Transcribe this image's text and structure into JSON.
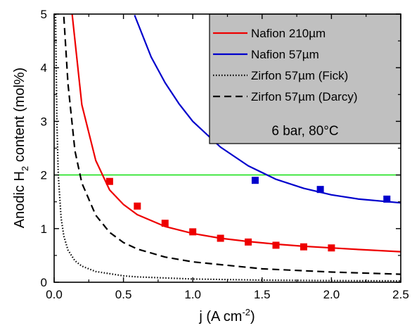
{
  "chart_data": {
    "type": "line",
    "title": "",
    "xlabel": {
      "main": "j (A cm",
      "sup": "-2",
      "close": ")"
    },
    "ylabel": {
      "pre": "Anodic H",
      "sub": "2",
      "post": " content (mol%)"
    },
    "xlim": [
      0.0,
      2.5
    ],
    "ylim": [
      0,
      5
    ],
    "xticks": [
      "0.0",
      "0.5",
      "1.0",
      "1.5",
      "2.0",
      "2.5"
    ],
    "yticks": [
      "0",
      "1",
      "2",
      "3",
      "4",
      "5"
    ],
    "grid": false,
    "legend_placement": "top-right",
    "annotation": "6 bar, 80°C",
    "threshold": {
      "y": 2.0,
      "color": "#00dd00"
    },
    "series": [
      {
        "name": "Nafion 210µm",
        "color": "#ee0000",
        "style": "solid",
        "x": [
          0.13,
          0.2,
          0.3,
          0.4,
          0.5,
          0.6,
          0.8,
          1.0,
          1.2,
          1.4,
          1.6,
          1.8,
          2.0,
          2.2,
          2.5
        ],
        "y": [
          5.0,
          3.31,
          2.27,
          1.72,
          1.45,
          1.26,
          1.04,
          0.91,
          0.82,
          0.76,
          0.71,
          0.67,
          0.64,
          0.61,
          0.57
        ]
      },
      {
        "name": "Nafion 57µm",
        "color": "#0000cc",
        "style": "solid",
        "x": [
          0.58,
          0.7,
          0.8,
          0.9,
          1.0,
          1.2,
          1.4,
          1.6,
          1.8,
          2.0,
          2.2,
          2.5
        ],
        "y": [
          4.98,
          4.2,
          3.72,
          3.33,
          3.0,
          2.52,
          2.17,
          1.92,
          1.75,
          1.63,
          1.55,
          1.48
        ]
      },
      {
        "name": "Zirfon 57µm (Fick)",
        "color": "#000000",
        "style": "dotted",
        "x": [
          0.01,
          0.02,
          0.03,
          0.05,
          0.07,
          0.1,
          0.15,
          0.2,
          0.3,
          0.4,
          0.5,
          0.6,
          0.8,
          1.0,
          1.5,
          2.0,
          2.5
        ],
        "y": [
          5.0,
          3.0,
          2.0,
          1.2,
          0.86,
          0.6,
          0.4,
          0.3,
          0.2,
          0.16,
          0.12,
          0.1,
          0.08,
          0.06,
          0.04,
          0.03,
          0.025
        ]
      },
      {
        "name": "Zirfon 57µm (Darcy)",
        "color": "#000000",
        "style": "dashed",
        "x": [
          0.07,
          0.1,
          0.15,
          0.2,
          0.3,
          0.4,
          0.5,
          0.6,
          0.8,
          1.0,
          1.5,
          2.0,
          2.5
        ],
        "y": [
          4.95,
          3.7,
          2.45,
          1.85,
          1.25,
          0.93,
          0.74,
          0.62,
          0.47,
          0.38,
          0.25,
          0.19,
          0.15
        ]
      }
    ],
    "points": [
      {
        "color": "#ee0000",
        "x": [
          0.4,
          0.6,
          0.8,
          1.0,
          1.2,
          1.4,
          1.6,
          1.8,
          2.0
        ],
        "y": [
          1.88,
          1.42,
          1.1,
          0.94,
          0.82,
          0.75,
          0.69,
          0.66,
          0.64
        ]
      },
      {
        "color": "#0000cc",
        "x": [
          1.45,
          1.92,
          2.4
        ],
        "y": [
          1.9,
          1.73,
          1.55
        ]
      }
    ]
  }
}
